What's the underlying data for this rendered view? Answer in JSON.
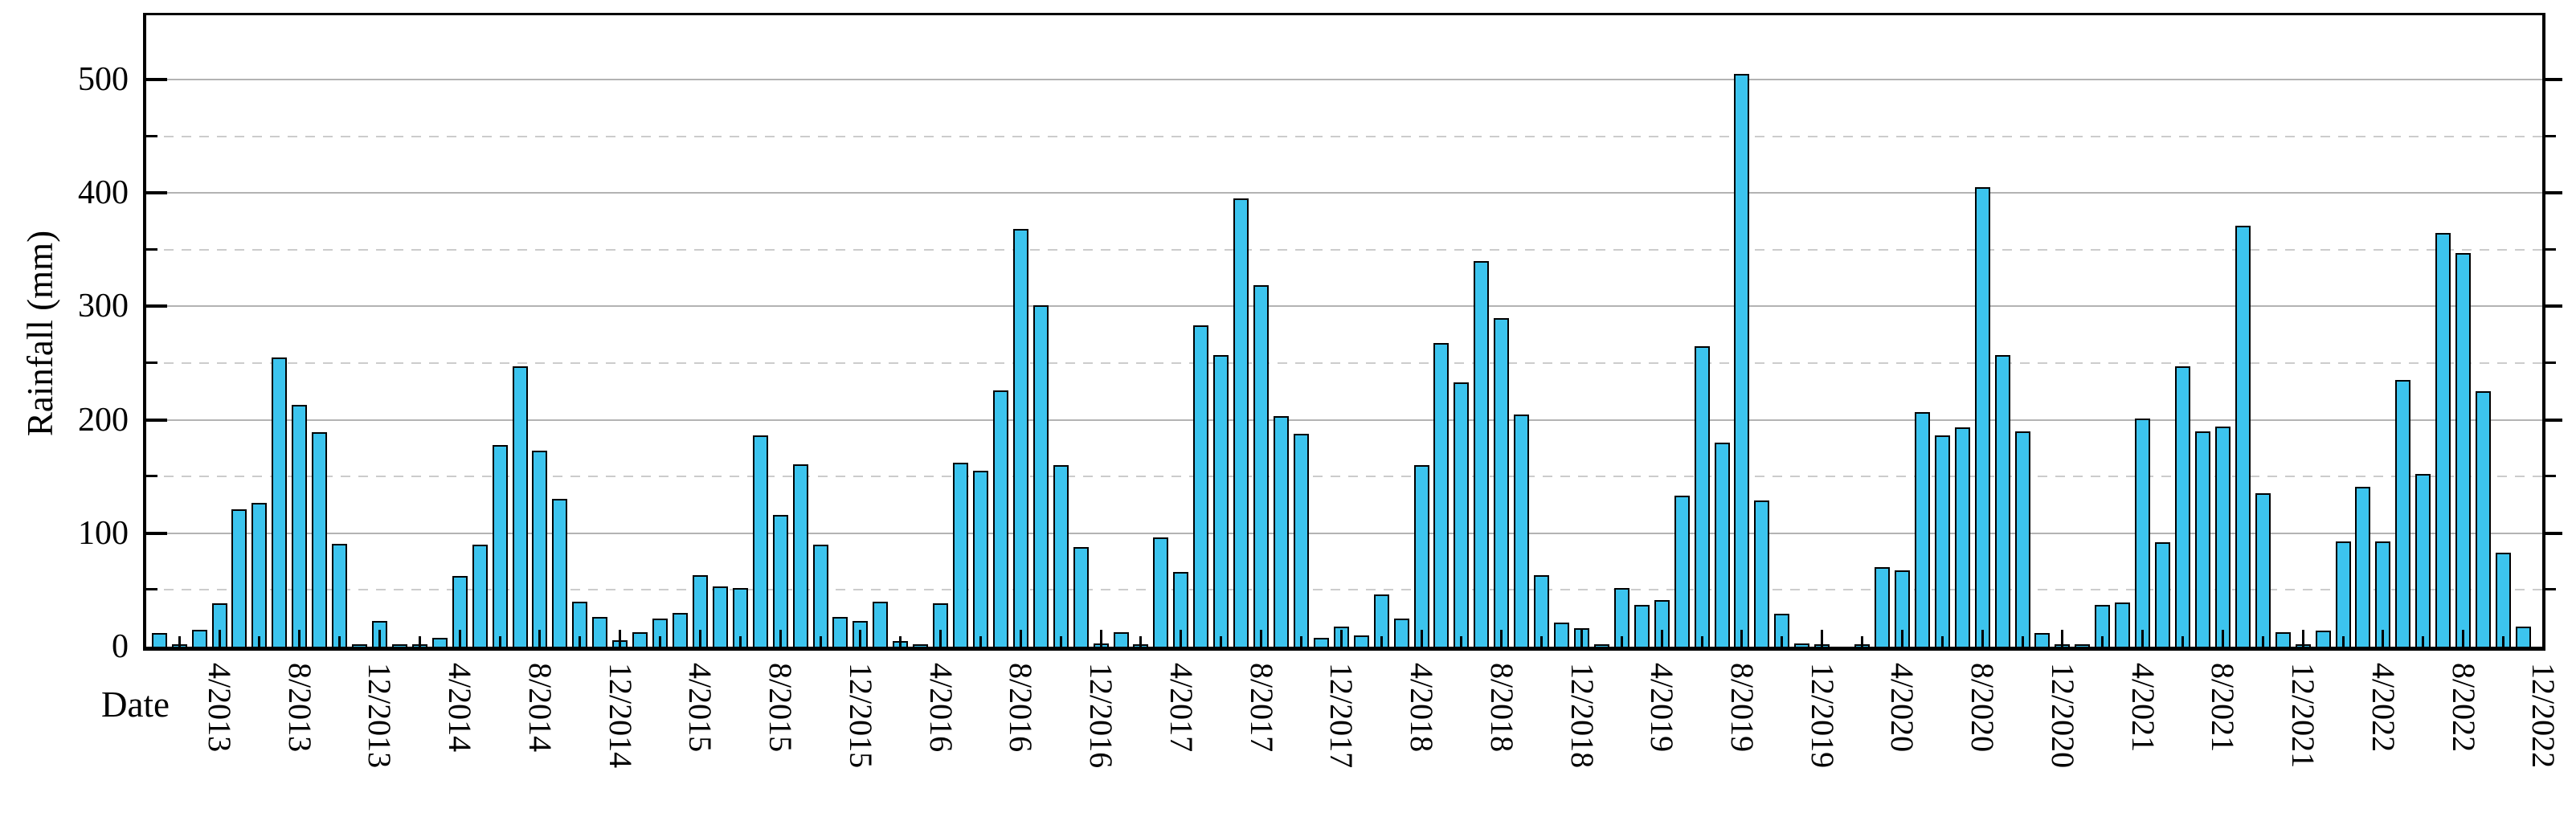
{
  "axes": {
    "x_label": "Date",
    "y_label": "Rainfall (mm)"
  },
  "colors": {
    "bar_fill": "#3cc4ee",
    "bar_edge": "#000000",
    "grid_solid": "#b3b3b3",
    "grid_dashed": "#cccccc",
    "axis": "#000000",
    "background": "#ffffff"
  },
  "chart_data": {
    "type": "bar",
    "title": "",
    "xlabel": "Date",
    "ylabel": "Rainfall (mm)",
    "ylim": [
      0,
      560
    ],
    "y_major_ticks": [
      0,
      100,
      200,
      300,
      400,
      500
    ],
    "y_minor_step": 50,
    "grid": "horizontal: solid lines at 100s, dashed lines at 50s; no vertical grid",
    "legend_position": "none",
    "x_tick_labels": [
      "4/2013",
      "8/2013",
      "12/2013",
      "4/2014",
      "8/2014",
      "12/2014",
      "4/2015",
      "8/2015",
      "12/2015",
      "4/2016",
      "8/2016",
      "12/2016",
      "4/2017",
      "8/2017",
      "12/2017",
      "4/2018",
      "8/2018",
      "12/2018",
      "4/2019",
      "8/2019",
      "12/2019",
      "4/2020",
      "8/2020",
      "12/2020",
      "4/2021",
      "8/2021",
      "12/2021",
      "4/2022",
      "8/2022",
      "12/2022"
    ],
    "months": [
      "1/2013",
      "2/2013",
      "3/2013",
      "4/2013",
      "5/2013",
      "6/2013",
      "7/2013",
      "8/2013",
      "9/2013",
      "10/2013",
      "11/2013",
      "12/2013",
      "1/2014",
      "2/2014",
      "3/2014",
      "4/2014",
      "5/2014",
      "6/2014",
      "7/2014",
      "8/2014",
      "9/2014",
      "10/2014",
      "11/2014",
      "12/2014",
      "1/2015",
      "2/2015",
      "3/2015",
      "4/2015",
      "5/2015",
      "6/2015",
      "7/2015",
      "8/2015",
      "9/2015",
      "10/2015",
      "11/2015",
      "12/2015",
      "1/2016",
      "2/2016",
      "3/2016",
      "4/2016",
      "5/2016",
      "6/2016",
      "7/2016",
      "8/2016",
      "9/2016",
      "10/2016",
      "11/2016",
      "12/2016",
      "1/2017",
      "2/2017",
      "3/2017",
      "4/2017",
      "5/2017",
      "6/2017",
      "7/2017",
      "8/2017",
      "9/2017",
      "10/2017",
      "11/2017",
      "12/2017",
      "1/2018",
      "2/2018",
      "3/2018",
      "4/2018",
      "5/2018",
      "6/2018",
      "7/2018",
      "8/2018",
      "9/2018",
      "10/2018",
      "11/2018",
      "12/2018",
      "1/2019",
      "2/2019",
      "3/2019",
      "4/2019",
      "5/2019",
      "6/2019",
      "7/2019",
      "8/2019",
      "9/2019",
      "10/2019",
      "11/2019",
      "12/2019",
      "1/2020",
      "2/2020",
      "3/2020",
      "4/2020",
      "5/2020",
      "6/2020",
      "7/2020",
      "8/2020",
      "9/2020",
      "10/2020",
      "11/2020",
      "12/2020",
      "1/2021",
      "2/2021",
      "3/2021",
      "4/2021",
      "5/2021",
      "6/2021",
      "7/2021",
      "8/2021",
      "9/2021",
      "10/2021",
      "11/2021",
      "12/2021",
      "1/2022",
      "2/2022",
      "3/2022",
      "4/2022",
      "5/2022",
      "6/2022",
      "7/2022",
      "8/2022",
      "9/2022",
      "10/2022",
      "11/2022",
      "12/2022"
    ],
    "values": [
      12,
      1,
      15,
      38,
      121,
      127,
      255,
      213,
      189,
      91,
      2,
      23,
      2,
      2,
      8,
      62,
      90,
      178,
      247,
      173,
      130,
      40,
      26,
      6,
      13,
      25,
      30,
      63,
      53,
      52,
      186,
      116,
      161,
      90,
      26,
      23,
      40,
      5,
      2,
      38,
      162,
      155,
      226,
      368,
      301,
      160,
      88,
      3,
      13,
      2,
      96,
      66,
      283,
      257,
      395,
      319,
      203,
      188,
      8,
      18,
      10,
      46,
      25,
      160,
      268,
      233,
      340,
      290,
      205,
      63,
      21,
      16,
      2,
      52,
      37,
      41,
      133,
      265,
      180,
      505,
      129,
      29,
      3,
      1,
      0,
      1,
      70,
      67,
      207,
      186,
      193,
      405,
      257,
      190,
      12,
      1,
      1,
      37,
      39,
      201,
      92,
      247,
      190,
      194,
      371,
      135,
      13,
      1,
      14,
      93,
      141,
      93,
      235,
      152,
      365,
      347,
      225,
      83,
      18,
      0
    ]
  }
}
